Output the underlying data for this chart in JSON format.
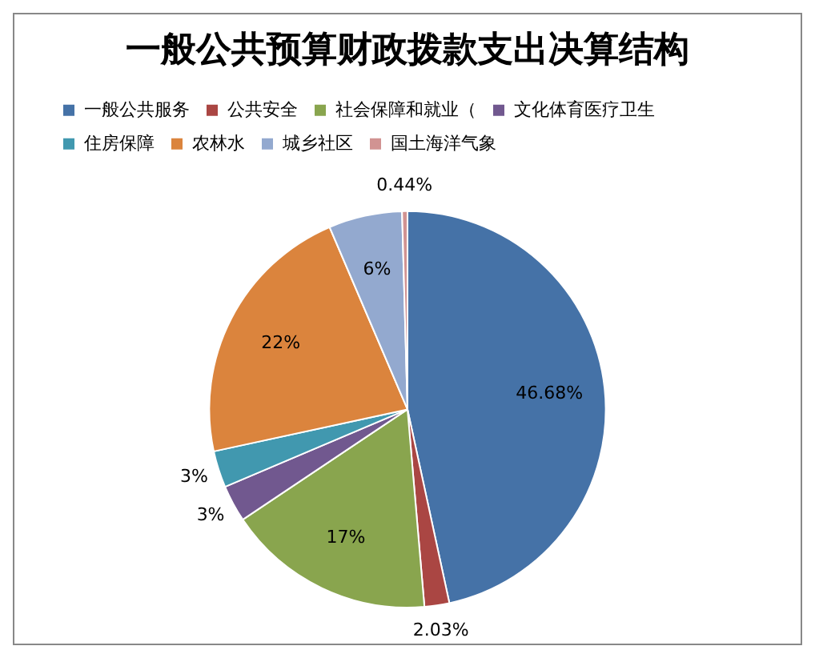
{
  "chart_data": {
    "type": "pie",
    "title": "一般公共预算财政拨款支出决算结构",
    "categories": [
      "一般公共服务",
      "公共安全",
      "社会保障和就业（",
      "文化体育医疗卫生",
      "住房保障",
      "农林水",
      "城乡社区",
      "国土海洋气象"
    ],
    "values": [
      46.68,
      2.03,
      17,
      3,
      3,
      22,
      6,
      0.44
    ],
    "value_labels": [
      "46.68%",
      "2.03%",
      "17%",
      "3%",
      "3%",
      "22%",
      "6%",
      "0.44%"
    ],
    "colors": [
      "#4572a7",
      "#aa4643",
      "#89a54e",
      "#71588f",
      "#4198af",
      "#db843d",
      "#93a9cf",
      "#d19392"
    ],
    "legend": "top left"
  }
}
